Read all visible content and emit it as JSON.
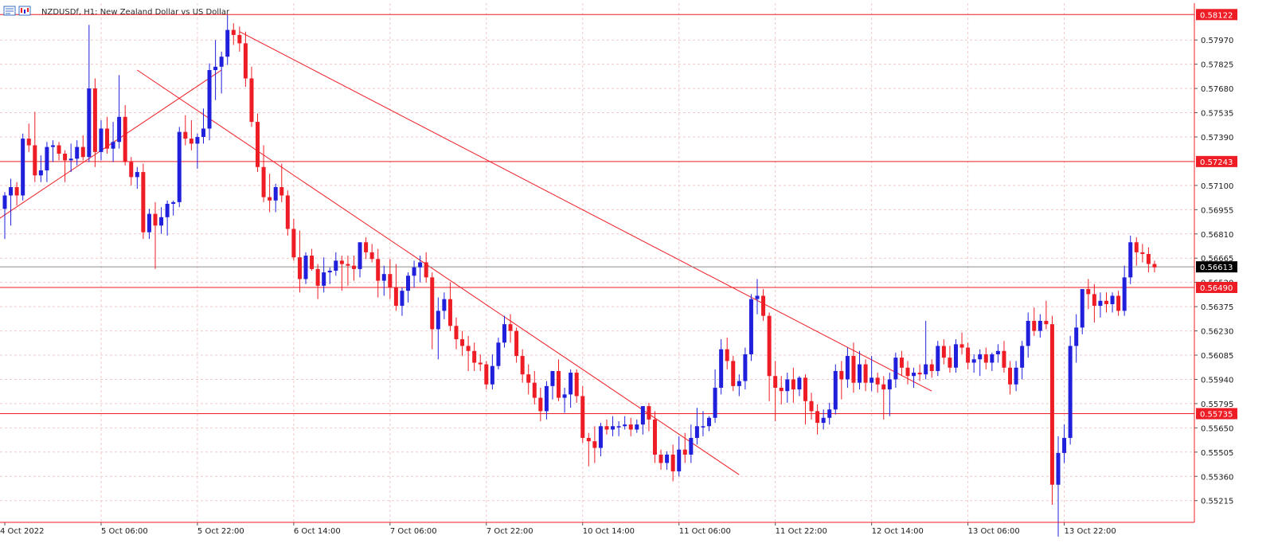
{
  "header": {
    "symbol_text": "NZDUSDf, H1:  New Zealand Dollar vs US Dollar",
    "icon": "chart-window-icon"
  },
  "colors": {
    "bull": "#1f1fdc",
    "bear": "#ee1c24",
    "level_line": "#ee1c24",
    "trend_line": "#ee1c24",
    "grid": "#f0c9c9",
    "axis": "#ee1c24",
    "current_price_bg": "#000000",
    "level_label_bg": "#ee1c24"
  },
  "chart_data": {
    "type": "candlestick",
    "title": "NZDUSDf, H1:  New Zealand Dollar vs US Dollar",
    "ylim": [
      0.55085,
      0.5819
    ],
    "grid": true,
    "y_ticks": [
      "0.57970",
      "0.57825",
      "0.57680",
      "0.57535",
      "0.57390",
      "0.57100",
      "0.56955",
      "0.56810",
      "0.56665",
      "0.56520",
      "0.56375",
      "0.56230",
      "0.56085",
      "0.55940",
      "0.55795",
      "0.55650",
      "0.55505",
      "0.55360",
      "0.55215"
    ],
    "x_labels": [
      "4 Oct 2022",
      "5 Oct 06:00",
      "5 Oct 22:00",
      "6 Oct 14:00",
      "7 Oct 06:00",
      "7 Oct 22:00",
      "10 Oct 14:00",
      "11 Oct 06:00",
      "11 Oct 22:00",
      "12 Oct 14:00",
      "13 Oct 06:00",
      "13 Oct 22:00"
    ],
    "x_label_bars": [
      0,
      16,
      32,
      48,
      64,
      80,
      96,
      112,
      128,
      144,
      160,
      176
    ],
    "horizontal_levels": [
      "0.58122",
      "0.57243",
      "0.56490",
      "0.55735"
    ],
    "current_price": "0.56613",
    "trendlines": [
      {
        "from": [
          -1,
          0.569
        ],
        "to": [
          36,
          0.5779
        ]
      },
      {
        "from": [
          22,
          0.5779
        ],
        "to": [
          122,
          0.5537
        ]
      },
      {
        "from": [
          39,
          0.5802
        ],
        "to": [
          154,
          0.5587
        ]
      }
    ],
    "candles": [
      [
        0.5696,
        0.5706,
        0.5678,
        0.5704
      ],
      [
        0.5704,
        0.5714,
        0.5686,
        0.5709
      ],
      [
        0.5709,
        0.5712,
        0.5698,
        0.5704
      ],
      [
        0.5704,
        0.5741,
        0.5701,
        0.5738
      ],
      [
        0.5738,
        0.5747,
        0.573,
        0.5734
      ],
      [
        0.5734,
        0.5754,
        0.5712,
        0.5716
      ],
      [
        0.5716,
        0.5728,
        0.5712,
        0.5719
      ],
      [
        0.5719,
        0.5736,
        0.5712,
        0.5733
      ],
      [
        0.5733,
        0.5737,
        0.5724,
        0.5734
      ],
      [
        0.5734,
        0.5736,
        0.5725,
        0.5729
      ],
      [
        0.5729,
        0.5731,
        0.5712,
        0.5725
      ],
      [
        0.5725,
        0.5735,
        0.5718,
        0.5726
      ],
      [
        0.5726,
        0.5737,
        0.5722,
        0.5733
      ],
      [
        0.5733,
        0.574,
        0.5725,
        0.5727
      ],
      [
        0.5727,
        0.5806,
        0.5724,
        0.5768
      ],
      [
        0.5768,
        0.5774,
        0.5721,
        0.573
      ],
      [
        0.573,
        0.5749,
        0.5725,
        0.5744
      ],
      [
        0.5744,
        0.5751,
        0.5729,
        0.5732
      ],
      [
        0.5732,
        0.5748,
        0.5724,
        0.5736
      ],
      [
        0.5736,
        0.5776,
        0.5732,
        0.5751
      ],
      [
        0.5751,
        0.5758,
        0.5722,
        0.5724
      ],
      [
        0.5724,
        0.5727,
        0.571,
        0.5715
      ],
      [
        0.5715,
        0.5721,
        0.5708,
        0.5718
      ],
      [
        0.5718,
        0.5723,
        0.5678,
        0.5682
      ],
      [
        0.5682,
        0.5696,
        0.5678,
        0.5693
      ],
      [
        0.5693,
        0.57,
        0.566,
        0.5686
      ],
      [
        0.5686,
        0.5697,
        0.5681,
        0.5691
      ],
      [
        0.5691,
        0.5701,
        0.568,
        0.5699
      ],
      [
        0.5699,
        0.5701,
        0.5692,
        0.57
      ],
      [
        0.57,
        0.5745,
        0.5697,
        0.5742
      ],
      [
        0.5742,
        0.5752,
        0.5734,
        0.5738
      ],
      [
        0.5738,
        0.5749,
        0.5731,
        0.5735
      ],
      [
        0.5735,
        0.5741,
        0.572,
        0.5739
      ],
      [
        0.5739,
        0.5756,
        0.5735,
        0.5744
      ],
      [
        0.5744,
        0.5783,
        0.5737,
        0.5779
      ],
      [
        0.5779,
        0.5797,
        0.5761,
        0.5781
      ],
      [
        0.5781,
        0.579,
        0.5765,
        0.5787
      ],
      [
        0.5787,
        0.5812,
        0.5782,
        0.5803
      ],
      [
        0.5803,
        0.5807,
        0.5794,
        0.58
      ],
      [
        0.58,
        0.5805,
        0.579,
        0.5795
      ],
      [
        0.5795,
        0.5802,
        0.5769,
        0.5774
      ],
      [
        0.5774,
        0.5781,
        0.5745,
        0.5748
      ],
      [
        0.5748,
        0.5753,
        0.5718,
        0.5721
      ],
      [
        0.5721,
        0.5734,
        0.57,
        0.5703
      ],
      [
        0.5703,
        0.5717,
        0.5694,
        0.5701
      ],
      [
        0.5701,
        0.5711,
        0.5694,
        0.5709
      ],
      [
        0.5709,
        0.5723,
        0.57,
        0.5704
      ],
      [
        0.5704,
        0.5707,
        0.568,
        0.5684
      ],
      [
        0.5684,
        0.569,
        0.5665,
        0.5667
      ],
      [
        0.5667,
        0.5683,
        0.5646,
        0.5654
      ],
      [
        0.5654,
        0.567,
        0.5651,
        0.5668
      ],
      [
        0.5668,
        0.5672,
        0.5659,
        0.566
      ],
      [
        0.566,
        0.5663,
        0.5642,
        0.565
      ],
      [
        0.565,
        0.5667,
        0.5646,
        0.5658
      ],
      [
        0.5658,
        0.5661,
        0.5651,
        0.5659
      ],
      [
        0.5659,
        0.567,
        0.5656,
        0.5665
      ],
      [
        0.5665,
        0.5668,
        0.5647,
        0.5663
      ],
      [
        0.5663,
        0.5668,
        0.565,
        0.5662
      ],
      [
        0.5662,
        0.5668,
        0.5653,
        0.566
      ],
      [
        0.566,
        0.5676,
        0.5655,
        0.5676
      ],
      [
        0.5676,
        0.5679,
        0.5666,
        0.567
      ],
      [
        0.567,
        0.5675,
        0.5664,
        0.5666
      ],
      [
        0.5666,
        0.5672,
        0.5643,
        0.5653
      ],
      [
        0.5653,
        0.5662,
        0.5644,
        0.5657
      ],
      [
        0.5657,
        0.5666,
        0.5642,
        0.5649
      ],
      [
        0.5649,
        0.5663,
        0.5635,
        0.5638
      ],
      [
        0.5638,
        0.5649,
        0.5632,
        0.5647
      ],
      [
        0.5647,
        0.5658,
        0.564,
        0.5656
      ],
      [
        0.5656,
        0.5665,
        0.5649,
        0.5661
      ],
      [
        0.5661,
        0.5668,
        0.5652,
        0.5664
      ],
      [
        0.5664,
        0.567,
        0.5652,
        0.5655
      ],
      [
        0.5655,
        0.5658,
        0.5612,
        0.5624
      ],
      [
        0.5624,
        0.5643,
        0.5606,
        0.5635
      ],
      [
        0.5635,
        0.5646,
        0.563,
        0.5642
      ],
      [
        0.5642,
        0.5652,
        0.5623,
        0.5626
      ],
      [
        0.5626,
        0.5631,
        0.5612,
        0.5618
      ],
      [
        0.5618,
        0.5623,
        0.5608,
        0.5614
      ],
      [
        0.5614,
        0.562,
        0.5599,
        0.5611
      ],
      [
        0.5611,
        0.5616,
        0.5599,
        0.5604
      ],
      [
        0.5604,
        0.5609,
        0.5599,
        0.5603
      ],
      [
        0.5603,
        0.5605,
        0.5588,
        0.5591
      ],
      [
        0.5591,
        0.5609,
        0.5588,
        0.5602
      ],
      [
        0.5602,
        0.5619,
        0.56,
        0.5616
      ],
      [
        0.5616,
        0.5632,
        0.5613,
        0.5627
      ],
      [
        0.5627,
        0.5633,
        0.5616,
        0.5623
      ],
      [
        0.5623,
        0.5625,
        0.5604,
        0.5608
      ],
      [
        0.5608,
        0.5612,
        0.5592,
        0.5597
      ],
      [
        0.5597,
        0.5603,
        0.5585,
        0.5592
      ],
      [
        0.5592,
        0.5599,
        0.5579,
        0.5583
      ],
      [
        0.5583,
        0.5589,
        0.5569,
        0.5575
      ],
      [
        0.5575,
        0.5593,
        0.557,
        0.559
      ],
      [
        0.559,
        0.5599,
        0.5582,
        0.5599
      ],
      [
        0.5599,
        0.5606,
        0.5581,
        0.5583
      ],
      [
        0.5583,
        0.5589,
        0.5574,
        0.5585
      ],
      [
        0.5585,
        0.56,
        0.5577,
        0.5598
      ],
      [
        0.5598,
        0.56,
        0.558,
        0.5584
      ],
      [
        0.5584,
        0.559,
        0.5556,
        0.5559
      ],
      [
        0.5559,
        0.5562,
        0.5542,
        0.5557
      ],
      [
        0.5557,
        0.5566,
        0.5544,
        0.5553
      ],
      [
        0.5553,
        0.5568,
        0.5548,
        0.5566
      ],
      [
        0.5566,
        0.557,
        0.5561,
        0.5564
      ],
      [
        0.5564,
        0.5572,
        0.556,
        0.5566
      ],
      [
        0.5566,
        0.5569,
        0.556,
        0.5566
      ],
      [
        0.5566,
        0.5572,
        0.5564,
        0.5567
      ],
      [
        0.5567,
        0.5571,
        0.556,
        0.5564
      ],
      [
        0.5564,
        0.557,
        0.5562,
        0.5567
      ],
      [
        0.5567,
        0.5578,
        0.5561,
        0.5578
      ],
      [
        0.5578,
        0.558,
        0.5563,
        0.557
      ],
      [
        0.557,
        0.5575,
        0.5544,
        0.5549
      ],
      [
        0.5549,
        0.5552,
        0.554,
        0.5544
      ],
      [
        0.5544,
        0.5551,
        0.554,
        0.5549
      ],
      [
        0.5549,
        0.5555,
        0.5533,
        0.5539
      ],
      [
        0.5539,
        0.556,
        0.5536,
        0.5552
      ],
      [
        0.5552,
        0.5562,
        0.5544,
        0.5549
      ],
      [
        0.5549,
        0.5567,
        0.5544,
        0.5559
      ],
      [
        0.5559,
        0.5577,
        0.5555,
        0.5566
      ],
      [
        0.5566,
        0.5575,
        0.556,
        0.5566
      ],
      [
        0.5566,
        0.5572,
        0.5563,
        0.5571
      ],
      [
        0.5571,
        0.56,
        0.5568,
        0.5589
      ],
      [
        0.5589,
        0.5618,
        0.5585,
        0.5612
      ],
      [
        0.5612,
        0.5619,
        0.56,
        0.5605
      ],
      [
        0.5605,
        0.5608,
        0.5587,
        0.559
      ],
      [
        0.559,
        0.5597,
        0.5584,
        0.5593
      ],
      [
        0.5593,
        0.5613,
        0.5588,
        0.5609
      ],
      [
        0.5609,
        0.5645,
        0.5605,
        0.5642
      ],
      [
        0.5642,
        0.5654,
        0.5633,
        0.5644
      ],
      [
        0.5644,
        0.5648,
        0.5629,
        0.5632
      ],
      [
        0.5632,
        0.5634,
        0.5581,
        0.5596
      ],
      [
        0.5596,
        0.5605,
        0.5569,
        0.5589
      ],
      [
        0.5589,
        0.5596,
        0.5579,
        0.5587
      ],
      [
        0.5587,
        0.5598,
        0.558,
        0.5594
      ],
      [
        0.5594,
        0.5601,
        0.558,
        0.5588
      ],
      [
        0.5588,
        0.5596,
        0.5584,
        0.5595
      ],
      [
        0.5595,
        0.5597,
        0.5567,
        0.5581
      ],
      [
        0.5581,
        0.5586,
        0.557,
        0.5575
      ],
      [
        0.5575,
        0.5579,
        0.5561,
        0.5568
      ],
      [
        0.5568,
        0.5576,
        0.5564,
        0.5571
      ],
      [
        0.5571,
        0.558,
        0.5567,
        0.5576
      ],
      [
        0.5576,
        0.5603,
        0.5573,
        0.5599
      ],
      [
        0.5599,
        0.5605,
        0.5582,
        0.5594
      ],
      [
        0.5594,
        0.5613,
        0.5589,
        0.5608
      ],
      [
        0.5608,
        0.5616,
        0.5586,
        0.5592
      ],
      [
        0.5592,
        0.5611,
        0.5588,
        0.5603
      ],
      [
        0.5603,
        0.5606,
        0.5587,
        0.5592
      ],
      [
        0.5592,
        0.5608,
        0.5587,
        0.5595
      ],
      [
        0.5595,
        0.5598,
        0.5586,
        0.5591
      ],
      [
        0.5591,
        0.5596,
        0.557,
        0.5588
      ],
      [
        0.5588,
        0.5598,
        0.5572,
        0.5594
      ],
      [
        0.5594,
        0.561,
        0.5589,
        0.5607
      ],
      [
        0.5607,
        0.5611,
        0.5596,
        0.5601
      ],
      [
        0.5601,
        0.5605,
        0.5591,
        0.5596
      ],
      [
        0.5596,
        0.5601,
        0.5589,
        0.5598
      ],
      [
        0.5598,
        0.5603,
        0.5593,
        0.5597
      ],
      [
        0.5597,
        0.5629,
        0.5594,
        0.5603
      ],
      [
        0.5603,
        0.5606,
        0.5595,
        0.5599
      ],
      [
        0.5599,
        0.5617,
        0.5596,
        0.5614
      ],
      [
        0.5614,
        0.5618,
        0.5603,
        0.5607
      ],
      [
        0.5607,
        0.5614,
        0.5598,
        0.5601
      ],
      [
        0.5601,
        0.5618,
        0.5598,
        0.5615
      ],
      [
        0.5615,
        0.5622,
        0.5609,
        0.5613
      ],
      [
        0.5613,
        0.5616,
        0.56,
        0.5604
      ],
      [
        0.5604,
        0.5609,
        0.5598,
        0.5606
      ],
      [
        0.5606,
        0.5612,
        0.5596,
        0.5609
      ],
      [
        0.5609,
        0.5613,
        0.56,
        0.5604
      ],
      [
        0.5604,
        0.561,
        0.5599,
        0.5609
      ],
      [
        0.5609,
        0.5615,
        0.5604,
        0.5611
      ],
      [
        0.5611,
        0.5617,
        0.5598,
        0.5601
      ],
      [
        0.5601,
        0.5605,
        0.5585,
        0.5591
      ],
      [
        0.5591,
        0.5605,
        0.5587,
        0.5601
      ],
      [
        0.5601,
        0.5617,
        0.5594,
        0.5614
      ],
      [
        0.5614,
        0.5634,
        0.5607,
        0.5629
      ],
      [
        0.5629,
        0.5637,
        0.562,
        0.5623
      ],
      [
        0.5623,
        0.5633,
        0.5619,
        0.5629
      ],
      [
        0.5629,
        0.5641,
        0.5624,
        0.5627
      ],
      [
        0.5627,
        0.5632,
        0.5519,
        0.5531
      ],
      [
        0.5531,
        0.556,
        0.55,
        0.555
      ],
      [
        0.555,
        0.5567,
        0.5544,
        0.5559
      ],
      [
        0.5559,
        0.562,
        0.5555,
        0.5614
      ],
      [
        0.5614,
        0.5633,
        0.5604,
        0.5625
      ],
      [
        0.5625,
        0.5648,
        0.5621,
        0.5648
      ],
      [
        0.5648,
        0.5654,
        0.5636,
        0.5645
      ],
      [
        0.5645,
        0.5651,
        0.5628,
        0.5638
      ],
      [
        0.5638,
        0.5646,
        0.5631,
        0.5641
      ],
      [
        0.5641,
        0.5646,
        0.5634,
        0.5639
      ],
      [
        0.5639,
        0.5646,
        0.5634,
        0.5644
      ],
      [
        0.5644,
        0.5647,
        0.5632,
        0.5635
      ],
      [
        0.5635,
        0.5662,
        0.5632,
        0.5655
      ],
      [
        0.5655,
        0.568,
        0.5651,
        0.5676
      ],
      [
        0.5676,
        0.5679,
        0.5662,
        0.567
      ],
      [
        0.567,
        0.5675,
        0.5664,
        0.5669
      ],
      [
        0.5669,
        0.5673,
        0.5658,
        0.5663
      ],
      [
        0.5663,
        0.5665,
        0.5658,
        0.5661
      ]
    ]
  }
}
